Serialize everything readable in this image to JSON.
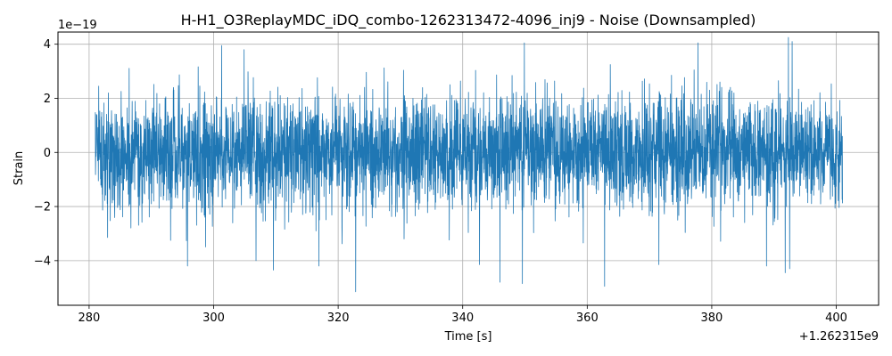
{
  "chart_data": {
    "type": "line",
    "title": "H-H1_O3ReplayMDC_iDQ_combo-1262313472-4096_inj9 - Noise (Downsampled)",
    "xlabel": "Time [s]",
    "ylabel": "Strain",
    "x_offset_label": "+1.262315e9",
    "y_exponent_label": "1e−19",
    "xlim": [
      275.0,
      406.8
    ],
    "ylim": [
      -5.65,
      4.45
    ],
    "x_range": [
      281.0,
      401.0
    ],
    "x_ticks": [
      280,
      300,
      320,
      340,
      360,
      380,
      400
    ],
    "x_tick_labels": [
      "280",
      "300",
      "320",
      "340",
      "360",
      "380",
      "400"
    ],
    "y_ticks": [
      -4,
      -2,
      0,
      2,
      4
    ],
    "y_tick_labels": [
      "−4",
      "−2",
      "0",
      "2",
      "4"
    ],
    "grid": true,
    "series_color": "#1f77b4",
    "peaks": [
      {
        "x": 301.3,
        "y": 3.95
      },
      {
        "x": 304.9,
        "y": 3.8
      },
      {
        "x": 349.9,
        "y": 4.05
      },
      {
        "x": 377.8,
        "y": 4.05
      },
      {
        "x": 392.3,
        "y": 4.25
      },
      {
        "x": 392.9,
        "y": 4.1
      }
    ],
    "troughs": [
      {
        "x": 295.8,
        "y": -4.2
      },
      {
        "x": 306.8,
        "y": -4.0
      },
      {
        "x": 309.6,
        "y": -4.35
      },
      {
        "x": 316.9,
        "y": -4.2
      },
      {
        "x": 322.8,
        "y": -5.15
      },
      {
        "x": 342.7,
        "y": -4.15
      },
      {
        "x": 346.0,
        "y": -4.8
      },
      {
        "x": 349.6,
        "y": -4.85
      },
      {
        "x": 362.8,
        "y": -4.95
      },
      {
        "x": 371.5,
        "y": -4.15
      },
      {
        "x": 388.8,
        "y": -4.2
      },
      {
        "x": 391.8,
        "y": -4.45
      },
      {
        "x": 392.5,
        "y": -4.3
      }
    ]
  }
}
